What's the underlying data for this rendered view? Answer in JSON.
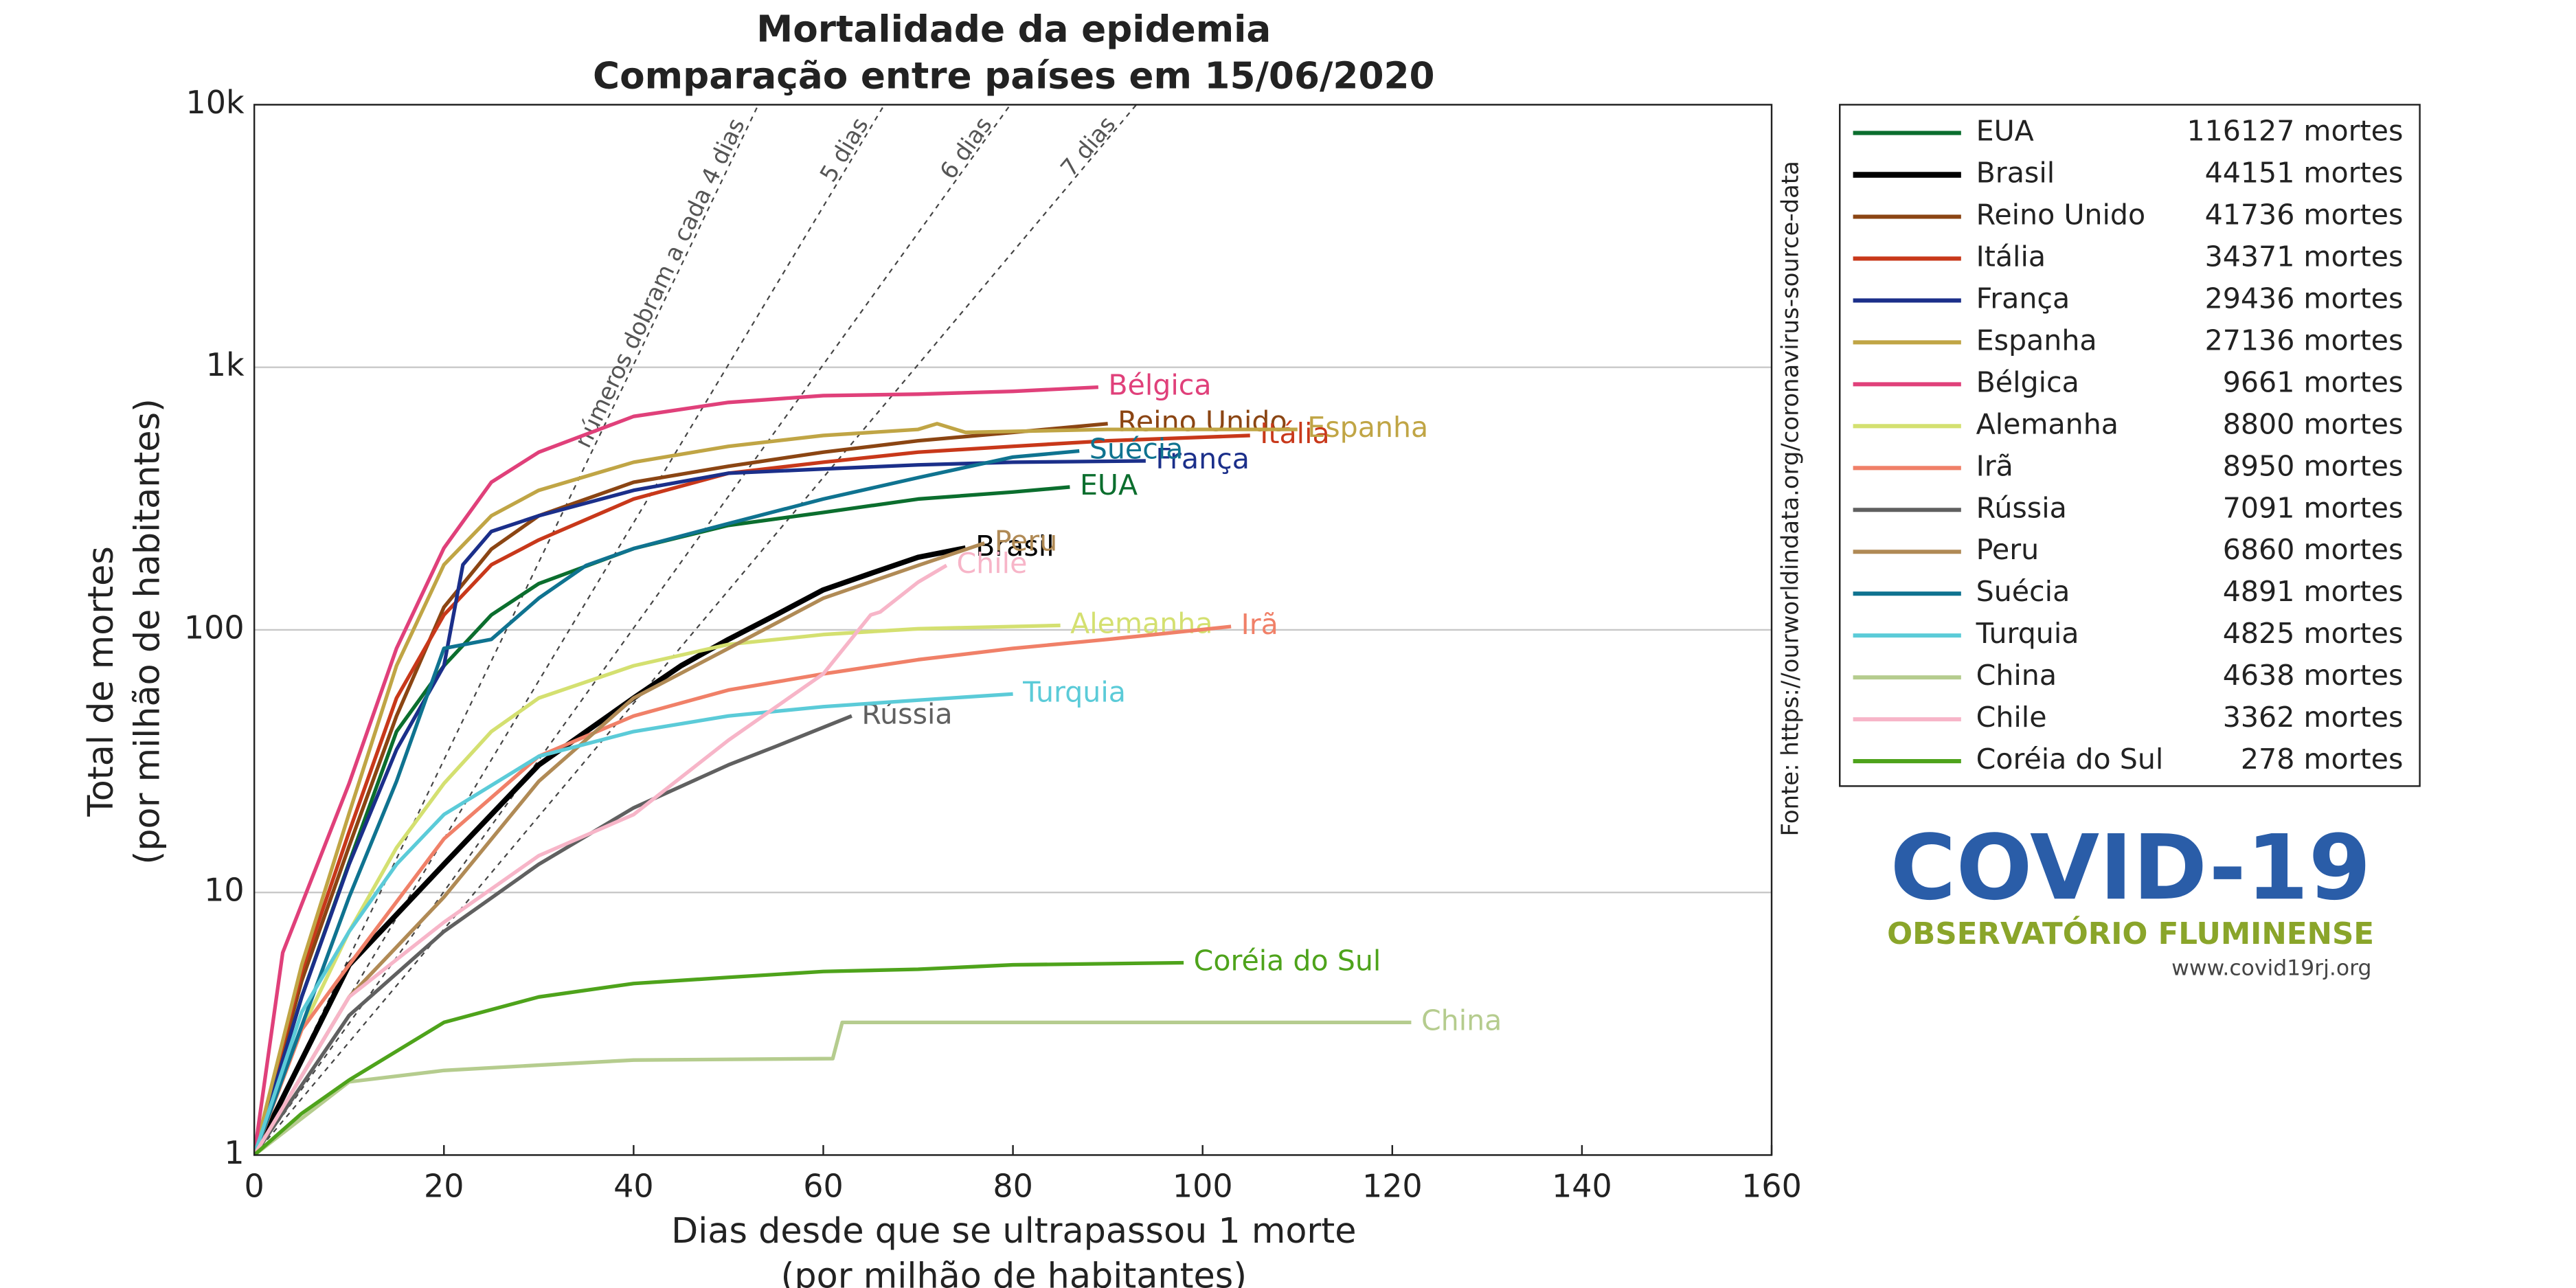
{
  "chart_data": {
    "type": "line",
    "title": [
      "Mortalidade da epidemia",
      "Comparação entre países em 15/06/2020"
    ],
    "x_label": [
      "Dias desde que se ultrapassou 1 morte",
      "(por milhão de habitantes)"
    ],
    "y_label": [
      "Total de mortes",
      "(por milhão de habitantes)"
    ],
    "source": "Fonte: https://ourworldindata.org/coronavirus-source-data",
    "log_y": true,
    "grid": true,
    "xlim": [
      0,
      160
    ],
    "xticks": [
      0,
      20,
      40,
      60,
      80,
      100,
      120,
      140,
      160
    ],
    "ylim": [
      1,
      10000
    ],
    "yticks": [
      1,
      10,
      100,
      {
        "value": 1000,
        "label": "1k"
      },
      {
        "value": 10000,
        "label": "10k"
      }
    ],
    "reference_lines": [
      {
        "label": "números dobram a cada 4 dias",
        "doubling_days": 4
      },
      {
        "label": "5 dias",
        "doubling_days": 5
      },
      {
        "label": "6 dias",
        "doubling_days": 6
      },
      {
        "label": "7 dias",
        "doubling_days": 7
      }
    ],
    "series": [
      {
        "name": "EUA",
        "note": "116127 mortes",
        "color": "#0b6e2e",
        "x": [
          0,
          5,
          10,
          15,
          20,
          25,
          30,
          40,
          50,
          60,
          70,
          80,
          86
        ],
        "values": [
          1,
          4,
          13,
          41,
          73,
          114,
          150,
          204,
          250,
          280,
          315,
          335,
          350
        ]
      },
      {
        "name": "Brasil",
        "note": "44151 mortes",
        "color": "#000000",
        "x": [
          0,
          10,
          20,
          25,
          30,
          35,
          40,
          45,
          50,
          55,
          60,
          65,
          70,
          75
        ],
        "values": [
          1,
          5.3,
          12.8,
          19.8,
          30.6,
          41,
          55,
          73,
          92,
          114,
          142,
          164,
          189,
          205
        ]
      },
      {
        "name": "Reino Unido",
        "note": "41736 mortes",
        "color": "#8b4513",
        "x": [
          0,
          5,
          10,
          15,
          20,
          25,
          30,
          40,
          50,
          60,
          70,
          80,
          90
        ],
        "values": [
          1,
          4.6,
          15,
          47,
          122,
          203,
          272,
          365,
          420,
          475,
          525,
          565,
          610
        ]
      },
      {
        "name": "Itália",
        "note": "34371 mortes",
        "color": "#c8381a",
        "x": [
          0,
          5,
          10,
          15,
          20,
          25,
          30,
          40,
          50,
          60,
          70,
          80,
          90,
          105
        ],
        "values": [
          1,
          5,
          17,
          55,
          114,
          177,
          220,
          315,
          395,
          435,
          475,
          500,
          525,
          550
        ]
      },
      {
        "name": "França",
        "note": "29436 mortes",
        "color": "#1b2f8a",
        "x": [
          0,
          5,
          10,
          15,
          20,
          22,
          25,
          30,
          40,
          50,
          60,
          70,
          80,
          94
        ],
        "values": [
          1,
          4,
          12.8,
          35,
          73,
          177,
          237,
          272,
          340,
          395,
          410,
          425,
          435,
          440
        ]
      },
      {
        "name": "Espanha",
        "note": "27136 mortes",
        "color": "#c0a545",
        "x": [
          0,
          5,
          10,
          15,
          20,
          25,
          30,
          40,
          50,
          60,
          70,
          72,
          75,
          90,
          110
        ],
        "values": [
          1,
          5.3,
          20,
          73,
          177,
          272,
          340,
          435,
          500,
          550,
          580,
          610,
          565,
          580,
          580
        ]
      },
      {
        "name": "Bélgica",
        "note": "9661 mortes",
        "color": "#e0407a",
        "x": [
          0,
          3,
          10,
          15,
          20,
          25,
          30,
          40,
          50,
          60,
          70,
          80,
          89
        ],
        "values": [
          1,
          5.9,
          26,
          85,
          205,
          365,
          475,
          650,
          735,
          780,
          790,
          810,
          840
        ]
      },
      {
        "name": "Alemanha",
        "note": "8800 mortes",
        "color": "#d4e070",
        "x": [
          0,
          5,
          10,
          15,
          20,
          25,
          30,
          40,
          50,
          60,
          70,
          85
        ],
        "values": [
          1,
          3,
          7.1,
          14.8,
          26,
          41,
          55,
          73,
          88,
          96,
          101,
          104
        ]
      },
      {
        "name": "Irã",
        "note": "8950 mortes",
        "color": "#f08068",
        "x": [
          0,
          5,
          10,
          20,
          30,
          40,
          50,
          60,
          70,
          80,
          90,
          103
        ],
        "values": [
          1,
          3,
          5.3,
          16,
          33,
          47,
          59,
          68,
          77,
          85,
          92,
          103
        ]
      },
      {
        "name": "Rússia",
        "note": "7091 mortes",
        "color": "#606060",
        "x": [
          0,
          10,
          20,
          30,
          40,
          50,
          55,
          63
        ],
        "values": [
          1,
          3.4,
          7.1,
          12.8,
          21,
          30.6,
          36,
          47
        ]
      },
      {
        "name": "Peru",
        "note": "6860 mortes",
        "color": "#b08a55",
        "x": [
          0,
          10,
          20,
          30,
          40,
          50,
          60,
          70,
          77
        ],
        "values": [
          1,
          4,
          9.6,
          26.5,
          55,
          85,
          132,
          176,
          214
        ]
      },
      {
        "name": "Suécia",
        "note": "4891 mortes",
        "color": "#0f7390",
        "x": [
          0,
          10,
          15,
          20,
          25,
          30,
          35,
          40,
          50,
          60,
          70,
          80,
          87
        ],
        "values": [
          1,
          9.6,
          26.5,
          85,
          92,
          132,
          176,
          204,
          254,
          315,
          380,
          455,
          480
        ]
      },
      {
        "name": "Turquia",
        "note": "4825 mortes",
        "color": "#5bcbd8",
        "x": [
          0,
          5,
          10,
          15,
          20,
          30,
          40,
          50,
          60,
          70,
          80
        ],
        "values": [
          1,
          3.5,
          7.1,
          12.8,
          19.8,
          33,
          41,
          47,
          51,
          54,
          57
        ]
      },
      {
        "name": "China",
        "note": "4638 mortes",
        "color": "#b5cc8e",
        "x": [
          0,
          10,
          20,
          30,
          40,
          61,
          62,
          122
        ],
        "values": [
          1,
          1.9,
          2.1,
          2.2,
          2.3,
          2.33,
          3.2,
          3.2
        ]
      },
      {
        "name": "Chile",
        "note": "3362 mortes",
        "color": "#f7b5c8",
        "x": [
          0,
          10,
          20,
          30,
          40,
          50,
          60,
          65,
          66,
          70,
          73
        ],
        "values": [
          1,
          4,
          7.7,
          13.8,
          19.8,
          38,
          68,
          114,
          117,
          152,
          176
        ]
      },
      {
        "name": "Coréia do Sul",
        "note": "278 mortes",
        "color": "#4ea31b",
        "x": [
          0,
          5,
          10,
          20,
          30,
          40,
          50,
          60,
          70,
          80,
          98
        ],
        "values": [
          1,
          1.44,
          1.93,
          3.2,
          4,
          4.5,
          4.75,
          5,
          5.1,
          5.3,
          5.4
        ]
      }
    ],
    "logo": {
      "title": "COVID-19",
      "subtitle": "OBSERVATÓRIO FLUMINENSE",
      "url": "www.covid19rj.org"
    }
  }
}
